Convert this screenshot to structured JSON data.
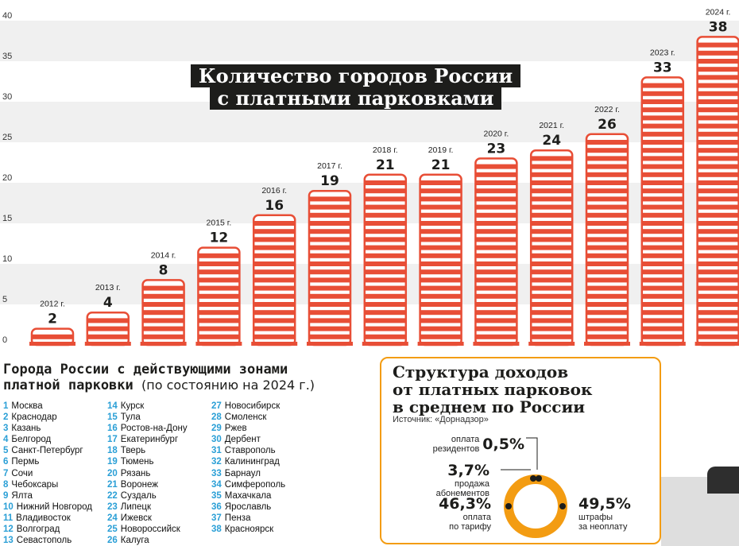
{
  "title": [
    "Количество городов России",
    "с платными парковками"
  ],
  "chart_data": {
    "type": "bar",
    "categories": [
      "2012 г.",
      "2013 г.",
      "2014 г.",
      "2015 г.",
      "2016 г.",
      "2017 г.",
      "2018 г.",
      "2019 г.",
      "2020 г.",
      "2021 г.",
      "2022 г.",
      "2023 г.",
      "2024 г."
    ],
    "values": [
      2,
      4,
      8,
      12,
      16,
      19,
      21,
      21,
      23,
      24,
      26,
      33,
      38
    ],
    "title": "Количество городов России с платными парковками",
    "xlabel": "",
    "ylabel": "",
    "ylim": [
      0,
      40
    ],
    "yticks": [
      0,
      5,
      10,
      15,
      20,
      25,
      30,
      35,
      40
    ],
    "grid": "alternating bands",
    "colors": {
      "bar": "#e84e36",
      "band": "#f0f0f0",
      "title_bg": "#1d1d1b"
    }
  },
  "cities": {
    "title_line1": "Города России с действующими зонами",
    "title_line2": "платной парковки",
    "title_note": "(по состоянию на 2024 г.)",
    "items": [
      {
        "num": "1",
        "name": "Москва"
      },
      {
        "num": "2",
        "name": "Краснодар"
      },
      {
        "num": "3",
        "name": "Казань"
      },
      {
        "num": "4",
        "name": "Белгород"
      },
      {
        "num": "5",
        "name": "Санкт-Петербург"
      },
      {
        "num": "6",
        "name": "Пермь"
      },
      {
        "num": "7",
        "name": "Сочи"
      },
      {
        "num": "8",
        "name": "Чебоксары"
      },
      {
        "num": "9",
        "name": "Ялта"
      },
      {
        "num": "10",
        "name": "Нижний Новгород"
      },
      {
        "num": "11",
        "name": "Владивосток"
      },
      {
        "num": "12",
        "name": "Волгоград"
      },
      {
        "num": "13",
        "name": "Севастополь"
      },
      {
        "num": "14",
        "name": "Курск"
      },
      {
        "num": "15",
        "name": "Тула"
      },
      {
        "num": "16",
        "name": "Ростов-на-Дону"
      },
      {
        "num": "17",
        "name": "Екатеринбург"
      },
      {
        "num": "18",
        "name": "Тверь"
      },
      {
        "num": "19",
        "name": "Тюмень"
      },
      {
        "num": "20",
        "name": "Рязань"
      },
      {
        "num": "21",
        "name": "Воронеж"
      },
      {
        "num": "22",
        "name": "Суздаль"
      },
      {
        "num": "23",
        "name": "Липецк"
      },
      {
        "num": "24",
        "name": "Ижевск"
      },
      {
        "num": "25",
        "name": "Новороссийск"
      },
      {
        "num": "26",
        "name": "Калуга"
      },
      {
        "num": "27",
        "name": "Новосибирск"
      },
      {
        "num": "28",
        "name": "Смоленск"
      },
      {
        "num": "29",
        "name": "Ржев"
      },
      {
        "num": "30",
        "name": "Дербент"
      },
      {
        "num": "31",
        "name": "Ставрополь"
      },
      {
        "num": "32",
        "name": "Калининград"
      },
      {
        "num": "33",
        "name": "Барнаул"
      },
      {
        "num": "34",
        "name": "Симферополь"
      },
      {
        "num": "35",
        "name": "Махачкала"
      },
      {
        "num": "36",
        "name": "Ярославль"
      },
      {
        "num": "37",
        "name": "Пенза"
      },
      {
        "num": "38",
        "name": "Красноярск"
      }
    ]
  },
  "revenue": {
    "title": [
      "Структура доходов",
      "от платных парковок",
      "в среднем по России"
    ],
    "source": "Источник: «Дорнадзор»",
    "segments": [
      {
        "pct": "49,5%",
        "value": 49.5,
        "desc": [
          "штрафы",
          "за неоплату"
        ]
      },
      {
        "pct": "46,3%",
        "value": 46.3,
        "desc": [
          "оплата",
          "по тарифу"
        ]
      },
      {
        "pct": "3,7%",
        "value": 3.7,
        "desc": [
          "продажа",
          "абонементов"
        ]
      },
      {
        "pct": "0,5%",
        "value": 0.5,
        "desc": [
          "оплата",
          "резидентов"
        ]
      }
    ],
    "colors": {
      "ring": "#f39c12",
      "dot": "#1d1d1b"
    }
  }
}
